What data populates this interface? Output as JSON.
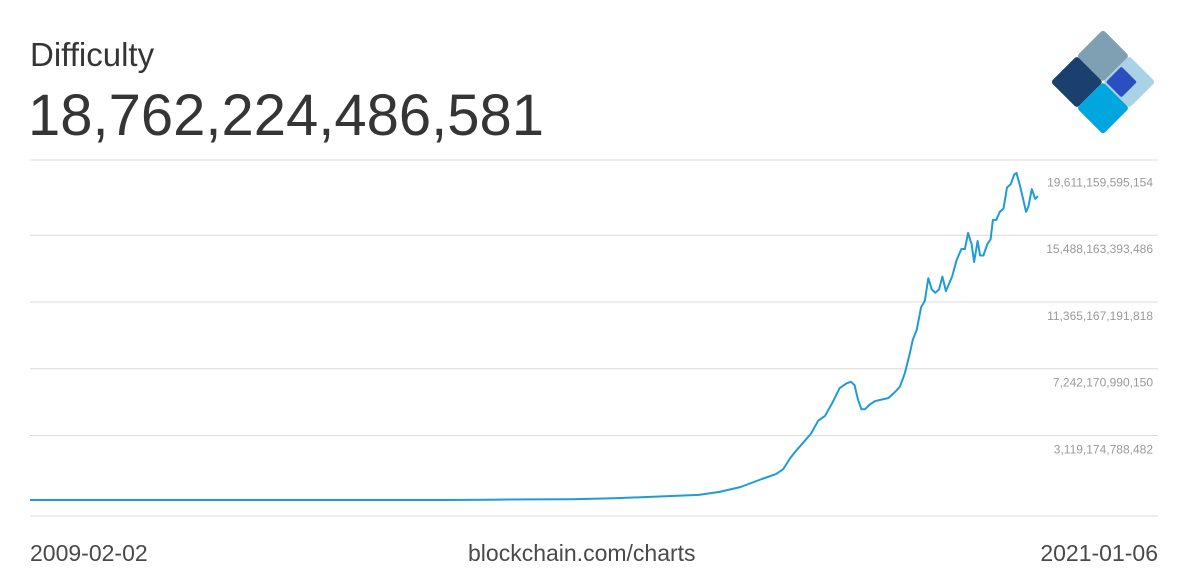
{
  "header": {
    "title": "Difficulty",
    "current_value": "18,762,224,486,581"
  },
  "footer": {
    "start_date": "2009-02-02",
    "source": "blockchain.com/charts",
    "end_date": "2021-01-06"
  },
  "logo": {
    "icon": "blockchain-logo-icon",
    "colors": [
      "#7f9fb3",
      "#1b3f6e",
      "#2a4fc0",
      "#a9d2e6",
      "#00a6dd"
    ]
  },
  "chart_data": {
    "type": "line",
    "title": "Difficulty",
    "xlabel": "",
    "ylabel": "",
    "xlim": [
      "2009-02-02",
      "2021-01-06"
    ],
    "ylim": [
      0,
      21000000000000
    ],
    "y_ticks": [
      3119174788482,
      7242170990150,
      11365167191818,
      15488163393486,
      19611159595154
    ],
    "y_tick_labels": [
      "3,119,174,788,482",
      "7,242,170,990,150",
      "11,365,167,191,818",
      "15,488,163,393,486",
      "19,611,159,595,154"
    ],
    "grid": true,
    "line_color": "#1f9bd7",
    "series": [
      {
        "x": [
          "2009-02-02",
          "2010-01-01",
          "2011-01-01",
          "2012-01-01",
          "2013-01-01",
          "2013-07-01",
          "2014-01-01",
          "2014-07-01",
          "2015-01-01",
          "2015-07-01",
          "2016-01-01",
          "2016-07-01",
          "2017-01-01",
          "2017-04-01",
          "2017-07-01",
          "2017-10-01",
          "2017-12-01",
          "2018-01-01",
          "2018-02-01",
          "2018-03-01",
          "2018-04-01",
          "2018-05-01",
          "2018-06-01",
          "2018-07-01",
          "2018-08-01",
          "2018-09-01",
          "2018-10-01",
          "2018-10-20",
          "2018-11-05",
          "2018-11-20",
          "2018-12-05",
          "2018-12-20",
          "2019-01-10",
          "2019-02-01",
          "2019-03-01",
          "2019-04-01",
          "2019-05-01",
          "2019-05-20",
          "2019-06-10",
          "2019-07-01",
          "2019-07-15",
          "2019-08-01",
          "2019-08-20",
          "2019-09-05",
          "2019-09-20",
          "2019-10-05",
          "2019-10-20",
          "2019-11-05",
          "2019-11-20",
          "2019-12-05",
          "2020-01-01",
          "2020-01-20",
          "2020-02-10",
          "2020-02-25",
          "2020-03-10",
          "2020-03-25",
          "2020-04-05",
          "2020-04-20",
          "2020-05-01",
          "2020-05-15",
          "2020-06-01",
          "2020-06-15",
          "2020-06-25",
          "2020-07-10",
          "2020-07-25",
          "2020-08-10",
          "2020-08-25",
          "2020-09-10",
          "2020-09-25",
          "2020-10-05",
          "2020-10-20",
          "2020-11-01",
          "2020-11-15",
          "2020-11-25",
          "2020-12-10",
          "2020-12-25",
          "2021-01-06"
        ],
        "values": [
          1,
          15000,
          1000000,
          1200000,
          3000000,
          26000000,
          1400000000,
          17000000000,
          40000000000,
          52000000000,
          103000000000,
          213000000000,
          317000000000,
          500000000000,
          800000000000,
          1300000000000,
          1600000000000,
          1900000000000,
          2600000000000,
          3100000000000,
          3600000000000,
          4100000000000,
          4900000000000,
          5200000000000,
          6000000000000,
          6900000000000,
          7200000000000,
          7300000000000,
          7100000000000,
          6200000000000,
          5600000000000,
          5600000000000,
          5900000000000,
          6100000000000,
          6200000000000,
          6300000000000,
          6700000000000,
          7000000000000,
          7800000000000,
          9000000000000,
          9900000000000,
          10500000000000,
          11900000000000,
          12300000000000,
          13700000000000,
          13000000000000,
          12800000000000,
          13000000000000,
          13800000000000,
          12900000000000,
          13800000000000,
          14800000000000,
          15500000000000,
          15500000000000,
          16500000000000,
          15800000000000,
          14700000000000,
          16000000000000,
          15100000000000,
          15100000000000,
          15800000000000,
          16100000000000,
          17300000000000,
          17300000000000,
          17800000000000,
          18000000000000,
          19300000000000,
          19500000000000,
          20100000000000,
          20200000000000,
          19400000000000,
          18700000000000,
          17800000000000,
          18100000000000,
          19200000000000,
          18600000000000,
          18762224486581
        ]
      }
    ]
  }
}
